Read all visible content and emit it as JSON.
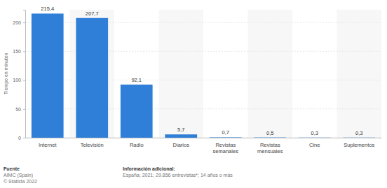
{
  "chart_data": {
    "type": "bar",
    "y_label": "Tiempo en minutos",
    "categories": [
      "Internet",
      "Televisión",
      "Radio",
      "Diarios",
      "Revistas semanales",
      "Revistas mensuales",
      "Cine",
      "Suplementos"
    ],
    "values": [
      215.4,
      207.7,
      92.1,
      5.7,
      0.7,
      0.5,
      0.3,
      0.3
    ],
    "value_labels": [
      "215,4",
      "207,7",
      "92,1",
      "5,7",
      "0,7",
      "0,5",
      "0,3",
      "0,3"
    ],
    "data_labels": true,
    "color": "#2f7ed8",
    "ylim": [
      0,
      222
    ],
    "yticks": [
      0,
      50,
      100,
      150,
      200
    ],
    "grid": true,
    "annotations": [
      "Fuente",
      "AIMC (Spain)",
      "© Statista 2022",
      "Información adicional:",
      "España; 2021; 29.856 entrevistas*; 14 años o más"
    ]
  }
}
